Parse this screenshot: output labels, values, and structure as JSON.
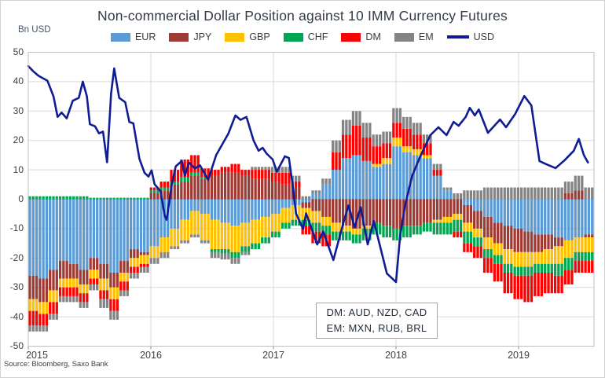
{
  "title": "Non-commercial Dollar Position against 10 IMM Currency Futures",
  "y_axis_unit": "Bn USD",
  "source": "Source: Bloomberg, Saxo Bank",
  "annotation": {
    "line1": "DM: AUD, NZD, CAD",
    "line2": "EM: MXN, RUB, BRL"
  },
  "legend": [
    {
      "label": "EUR",
      "color": "#5B9BD5"
    },
    {
      "label": "JPY",
      "color": "#9E3A33"
    },
    {
      "label": "GBP",
      "color": "#FFC000"
    },
    {
      "label": "CHF",
      "color": "#00A651"
    },
    {
      "label": "DM",
      "color": "#FE0000"
    },
    {
      "label": "EM",
      "color": "#848484"
    },
    {
      "label": "USD",
      "color": "#101C94"
    }
  ],
  "chart_data": {
    "type": "combo: stacked-bar (monthly approximation of weekly CFTC positioning) + line overlay",
    "title": "Non-commercial Dollar Position against 10 IMM Currency Futures",
    "ylabel": "Bn USD",
    "ylim": [
      -50,
      50
    ],
    "grid": true,
    "legend_position": "top-center",
    "yticks": [
      50,
      40,
      30,
      20,
      10,
      0,
      -10,
      -20,
      -30,
      -40,
      -50
    ],
    "xticks": [
      "2015",
      "2016",
      "2017",
      "2018",
      "2019"
    ],
    "style": {
      "grid": "#D9D9D9",
      "border": "#BFBFBF",
      "axis": "#8C8C8C"
    },
    "months": [
      "2015-01",
      "2015-02",
      "2015-03",
      "2015-04",
      "2015-05",
      "2015-06",
      "2015-07",
      "2015-08",
      "2015-09",
      "2015-10",
      "2015-11",
      "2015-12",
      "2016-01",
      "2016-02",
      "2016-03",
      "2016-04",
      "2016-05",
      "2016-06",
      "2016-07",
      "2016-08",
      "2016-09",
      "2016-10",
      "2016-11",
      "2016-12",
      "2017-01",
      "2017-02",
      "2017-03",
      "2017-04",
      "2017-05",
      "2017-06",
      "2017-07",
      "2017-08",
      "2017-09",
      "2017-10",
      "2017-11",
      "2017-12",
      "2018-01",
      "2018-02",
      "2018-03",
      "2018-04",
      "2018-05",
      "2018-06",
      "2018-07",
      "2018-08",
      "2018-09",
      "2018-10",
      "2018-11",
      "2018-12",
      "2019-01",
      "2019-02",
      "2019-03",
      "2019-04",
      "2019-05",
      "2019-06",
      "2019-07",
      "2019-08"
    ],
    "series": [
      {
        "name": "EUR",
        "color": "#5B9BD5",
        "values": [
          -26,
          -27,
          -24,
          -21,
          -22,
          -24,
          -20,
          -22,
          -25,
          -21,
          -17,
          -18,
          -16,
          -13,
          -10,
          -7,
          -4,
          -5,
          -7,
          -8,
          -9,
          -8,
          -7,
          -6,
          -5,
          -3,
          -2,
          -1,
          2,
          5,
          10,
          14,
          15,
          13,
          11,
          12,
          18,
          16,
          15,
          14,
          8,
          3,
          0,
          -2,
          -4,
          -6,
          -8,
          -9,
          -10,
          -11,
          -12,
          -12,
          -13,
          -14,
          -13,
          -12
        ]
      },
      {
        "name": "JPY",
        "color": "#9E3A33",
        "values": [
          -8,
          -8,
          -7,
          -6,
          -5,
          -5,
          -4,
          -5,
          -5,
          -4,
          -3,
          -1,
          2,
          3,
          5,
          6,
          8,
          7,
          8,
          9,
          9,
          8,
          7,
          7,
          6,
          5,
          4,
          -2,
          -4,
          -6,
          -8,
          -9,
          -10,
          -9,
          -8,
          -9,
          -10,
          -9,
          -9,
          -8,
          -7,
          -6,
          -5,
          -6,
          -6,
          -7,
          -7,
          -8,
          -8,
          -7,
          -6,
          -5,
          -3,
          2,
          3,
          -1
        ]
      },
      {
        "name": "GBP",
        "color": "#FFC000",
        "values": [
          -4,
          -4,
          -4,
          -3,
          -3,
          -3,
          -3,
          -4,
          -4,
          -3,
          -3,
          -3,
          -4,
          -5,
          -6,
          -7,
          -8,
          -9,
          -10,
          -9,
          -9,
          -8,
          -8,
          -7,
          -6,
          -5,
          -5,
          -4,
          -4,
          -3,
          -3,
          -2,
          -2,
          -1,
          1,
          2,
          3,
          2,
          2,
          1,
          -1,
          -2,
          -2,
          -3,
          -3,
          -4,
          -4,
          -5,
          -5,
          -5,
          -4,
          -5,
          -6,
          -6,
          -5,
          -5
        ]
      },
      {
        "name": "CHF",
        "color": "#00A651",
        "values": [
          1,
          1,
          1,
          1,
          1,
          1,
          0.5,
          0.5,
          0.5,
          0.5,
          0.5,
          0.5,
          1,
          1,
          1,
          1.5,
          1,
          0.5,
          -1,
          -1.5,
          -2,
          -2,
          -2,
          -2,
          -2,
          -2,
          -2,
          -2,
          -3,
          -3,
          -3,
          -3,
          -3,
          -4,
          -4,
          -4,
          -4,
          -4,
          -3,
          -3,
          -4,
          -4,
          -4,
          -4,
          -3,
          -3,
          -3,
          -3,
          -3,
          -3,
          -3,
          -3,
          -4,
          -4,
          -3,
          -3
        ]
      },
      {
        "name": "DM",
        "color": "#FE0000",
        "values": [
          -5,
          -4,
          -4,
          -3,
          -3,
          -3,
          -2,
          -3,
          -4,
          -3,
          -2,
          -1,
          1,
          2,
          4,
          6,
          6,
          3,
          2,
          2,
          3,
          2,
          3,
          3,
          3,
          4,
          2,
          -3,
          -4,
          -4,
          6,
          8,
          10,
          8,
          6,
          5,
          5,
          6,
          5,
          4,
          2,
          0,
          -2,
          -3,
          -4,
          -5,
          -6,
          -7,
          -8,
          -9,
          -8,
          -7,
          -6,
          -5,
          -4,
          -4
        ]
      },
      {
        "name": "EM",
        "color": "#848484",
        "values": [
          -2,
          -2,
          -2,
          -2,
          -2,
          -2,
          -2,
          -3,
          -3,
          -2,
          -2,
          -2,
          -2,
          -2,
          -1,
          -1,
          -1,
          -1,
          -2,
          -2,
          -2,
          -1,
          1,
          1,
          2,
          2,
          2,
          1,
          1,
          2,
          4,
          5,
          5,
          5,
          4,
          4,
          5,
          4,
          4,
          3,
          2,
          1,
          2,
          3,
          3,
          4,
          4,
          4,
          4,
          4,
          4,
          4,
          4,
          4,
          5,
          4
        ]
      }
    ],
    "line": {
      "name": "USD",
      "color": "#101C94",
      "x_unit": "months since 2015-01",
      "points": [
        [
          0,
          45.3
        ],
        [
          0.5,
          43.5
        ],
        [
          1,
          42
        ],
        [
          1.9,
          40.3
        ],
        [
          2.5,
          35
        ],
        [
          2.9,
          28
        ],
        [
          3.3,
          29.5
        ],
        [
          3.8,
          27.5
        ],
        [
          4.4,
          33.5
        ],
        [
          5,
          34.5
        ],
        [
          5.4,
          40
        ],
        [
          5.8,
          35
        ],
        [
          6.1,
          25.5
        ],
        [
          6.6,
          24.8
        ],
        [
          7,
          22.4
        ],
        [
          7.4,
          23
        ],
        [
          7.8,
          12.6
        ],
        [
          8.2,
          36
        ],
        [
          8.5,
          44.5
        ],
        [
          9,
          34.5
        ],
        [
          9.6,
          33
        ],
        [
          10,
          26.3
        ],
        [
          10.4,
          25.8
        ],
        [
          11,
          13.8
        ],
        [
          11.5,
          9
        ],
        [
          11.9,
          7.7
        ],
        [
          12.2,
          9.8
        ],
        [
          12.5,
          5.1
        ],
        [
          13.1,
          2.7
        ],
        [
          13.5,
          -5.6
        ],
        [
          13.7,
          -7
        ],
        [
          14.2,
          5
        ],
        [
          14.6,
          11.2
        ],
        [
          15.2,
          13
        ],
        [
          15.5,
          8
        ],
        [
          15.9,
          12.5
        ],
        [
          16.5,
          10.5
        ],
        [
          17,
          11.5
        ],
        [
          17.8,
          6.6
        ],
        [
          18.6,
          15
        ],
        [
          19.8,
          22.3
        ],
        [
          20.5,
          28.5
        ],
        [
          21,
          27
        ],
        [
          21.6,
          28
        ],
        [
          22.3,
          20
        ],
        [
          22.8,
          16.5
        ],
        [
          23.2,
          17.5
        ],
        [
          23.6,
          15.5
        ],
        [
          24.2,
          13.5
        ],
        [
          24.6,
          9.3
        ],
        [
          25.4,
          14.6
        ],
        [
          25.8,
          14
        ],
        [
          26.2,
          4
        ],
        [
          26.5,
          -4.8
        ],
        [
          27.2,
          -10.1
        ],
        [
          27.5,
          -4.8
        ],
        [
          28.6,
          -15.4
        ],
        [
          29.2,
          -11
        ],
        [
          30.2,
          -20.7
        ],
        [
          31.2,
          -8
        ],
        [
          31.7,
          -2.1
        ],
        [
          32.3,
          -9.6
        ],
        [
          32.9,
          -2.7
        ],
        [
          33.6,
          -15.4
        ],
        [
          34.2,
          -7.4
        ],
        [
          35.5,
          -25.3
        ],
        [
          36,
          -26.9
        ],
        [
          36.4,
          -28.2
        ],
        [
          36.8,
          -12.8
        ],
        [
          37.3,
          -2
        ],
        [
          38,
          8
        ],
        [
          38.8,
          14.6
        ],
        [
          39.8,
          21.8
        ],
        [
          40.6,
          24.5
        ],
        [
          41.4,
          21.8
        ],
        [
          42.1,
          26.3
        ],
        [
          42.6,
          25
        ],
        [
          43.3,
          28
        ],
        [
          43.7,
          31.1
        ],
        [
          44.2,
          28.5
        ],
        [
          44.6,
          30.5
        ],
        [
          45.5,
          22.6
        ],
        [
          46.7,
          27.1
        ],
        [
          47.3,
          24.5
        ],
        [
          48.2,
          29
        ],
        [
          49.1,
          35.1
        ],
        [
          49.8,
          31.9
        ],
        [
          50.6,
          13
        ],
        [
          51.2,
          12
        ],
        [
          52.2,
          10.6
        ],
        [
          53.1,
          13.3
        ],
        [
          54,
          16.5
        ],
        [
          54.5,
          20.5
        ],
        [
          55,
          15
        ],
        [
          55.4,
          12.5
        ]
      ]
    }
  }
}
